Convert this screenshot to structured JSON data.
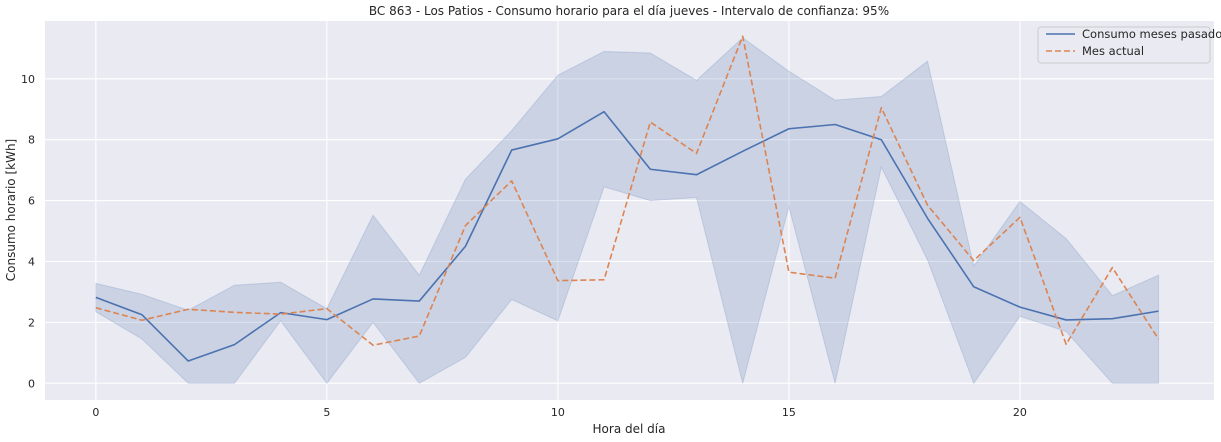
{
  "chart_data": {
    "type": "line",
    "title": "BC 863 - Los Patios - Consumo horario para el día jueves - Intervalo de confianza: 95%",
    "xlabel": "Hora del día",
    "ylabel": "Consumo horario [kWh]",
    "xlim": [
      -1.1,
      24.2
    ],
    "ylim": [
      -0.55,
      11.9
    ],
    "xticks": [
      0,
      5,
      10,
      15,
      20
    ],
    "yticks": [
      0,
      2,
      4,
      6,
      8,
      10
    ],
    "grid": true,
    "legend_position": "top-right",
    "x": [
      0,
      1,
      2,
      3,
      4,
      5,
      6,
      7,
      8,
      9,
      10,
      11,
      12,
      13,
      14,
      15,
      16,
      17,
      18,
      19,
      20,
      21,
      22,
      23
    ],
    "series": [
      {
        "name": "Consumo meses pasados",
        "style": "solid",
        "color": "#4c72b0",
        "values": [
          2.82,
          2.25,
          0.73,
          1.27,
          2.32,
          2.09,
          2.77,
          2.7,
          4.5,
          7.66,
          8.03,
          8.92,
          7.03,
          6.85,
          7.62,
          8.36,
          8.5,
          8.0,
          5.42,
          3.17,
          2.5,
          2.08,
          2.12,
          2.37
        ],
        "ci_lower": [
          2.35,
          1.45,
          0.0,
          0.0,
          2.05,
          0.0,
          2.0,
          0.0,
          0.85,
          2.75,
          2.05,
          6.45,
          6.0,
          6.1,
          0.0,
          5.8,
          0.0,
          7.1,
          4.05,
          0.0,
          2.2,
          1.7,
          0.0,
          0.0
        ],
        "ci_upper": [
          3.28,
          2.92,
          2.4,
          3.22,
          3.32,
          2.45,
          5.52,
          3.55,
          6.7,
          8.3,
          10.12,
          10.9,
          10.85,
          9.95,
          11.35,
          10.25,
          9.3,
          9.42,
          10.58,
          3.85,
          5.97,
          4.75,
          2.88,
          3.55
        ]
      },
      {
        "name": "Mes actual",
        "style": "dashed",
        "color": "#dd8452",
        "values": [
          2.48,
          2.07,
          2.43,
          2.33,
          2.27,
          2.45,
          1.25,
          1.55,
          5.18,
          6.65,
          3.37,
          3.4,
          8.58,
          7.55,
          11.4,
          3.65,
          3.45,
          9.05,
          5.85,
          4.03,
          5.45,
          1.28,
          3.8,
          1.45
        ]
      }
    ]
  }
}
